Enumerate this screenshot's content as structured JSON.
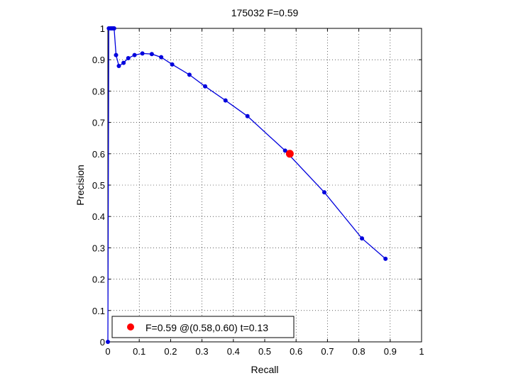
{
  "chart_data": {
    "type": "line",
    "title": "175032 F=0.59",
    "xlabel": "Recall",
    "ylabel": "Precision",
    "xlim": [
      0,
      1
    ],
    "ylim": [
      0,
      1
    ],
    "xticks": [
      "0",
      "0.1",
      "0.2",
      "0.3",
      "0.4",
      "0.5",
      "0.6",
      "0.7",
      "0.8",
      "0.9",
      "1"
    ],
    "yticks": [
      "0",
      "0.1",
      "0.2",
      "0.3",
      "0.4",
      "0.5",
      "0.6",
      "0.7",
      "0.8",
      "0.9",
      "1"
    ],
    "grid": true,
    "line_color": "#0000dd",
    "series": [
      {
        "x": [
          0.0,
          0.003,
          0.008,
          0.012,
          0.016,
          0.02,
          0.026,
          0.035,
          0.05,
          0.065,
          0.085,
          0.11,
          0.14,
          0.17,
          0.205,
          0.26,
          0.31,
          0.375,
          0.445,
          0.565,
          0.69,
          0.81,
          0.885
        ],
        "y": [
          0.0,
          1.0,
          1.0,
          1.0,
          1.0,
          1.0,
          0.915,
          0.88,
          0.89,
          0.905,
          0.915,
          0.92,
          0.918,
          0.908,
          0.885,
          0.852,
          0.815,
          0.77,
          0.72,
          0.61,
          0.477,
          0.33,
          0.265
        ]
      }
    ],
    "highlight_point": {
      "x": 0.58,
      "y": 0.6,
      "color": "#ff0000"
    },
    "legend": {
      "position": "bottom-left",
      "label": "F=0.59 @(0.58,0.60) t=0.13"
    }
  }
}
